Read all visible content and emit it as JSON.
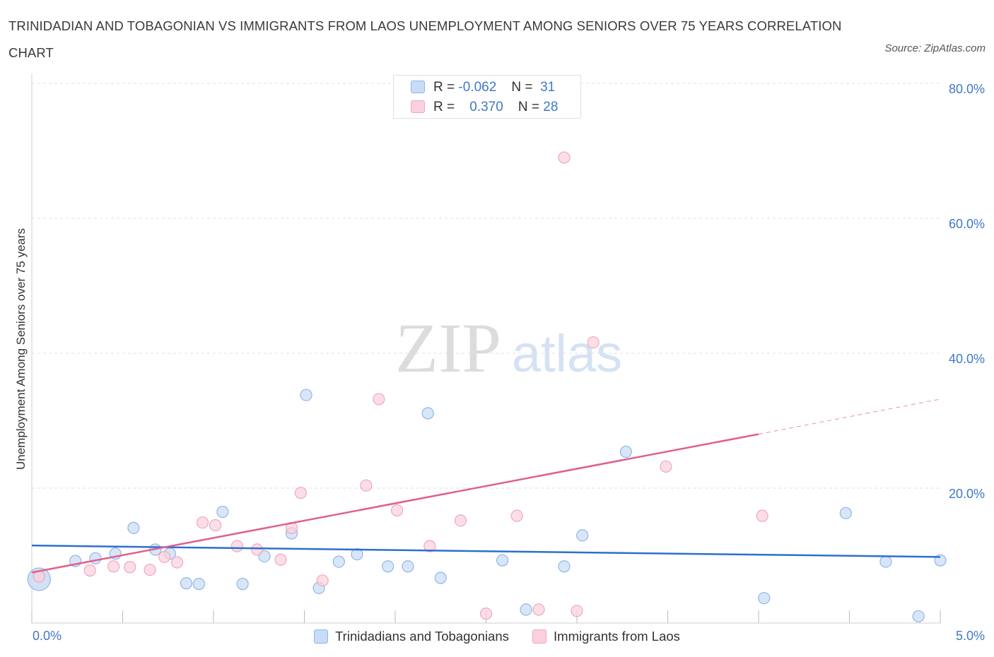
{
  "chart_data": {
    "type": "scatter",
    "title": "TRINIDADIAN AND TOBAGONIAN VS IMMIGRANTS FROM LAOS UNEMPLOYMENT AMONG SENIORS OVER 75 YEARS CORRELATION CHART",
    "source": "Source: ZipAtlas.com",
    "ylabel": "Unemployment Among Seniors over 75 years",
    "xlim": [
      0,
      5
    ],
    "ylim": [
      0,
      80
    ],
    "x_tick_labels": [
      "0.0%",
      "5.0%"
    ],
    "y_ticks": [
      20,
      40,
      60,
      80
    ],
    "y_tick_labels": [
      "20.0%",
      "40.0%",
      "60.0%",
      "80.0%"
    ],
    "grid": "horizontal dashed",
    "watermark": {
      "zip": "ZIP",
      "atlas": "atlas"
    },
    "legend": [
      {
        "r_label": "R =",
        "r_value": "-0.062",
        "n_label": "N =",
        "n_value": "31"
      },
      {
        "r_label": "R =",
        "r_value": "0.370",
        "n_label": "N = ",
        "n_value": "28"
      }
    ],
    "series": [
      {
        "name": "Trinidadians and Tobagonians",
        "color": "#8fb6ea",
        "fill": "#c9dcf5",
        "line_color": "#2f6fcc",
        "trend": {
          "x": [
            0.0,
            5.0
          ],
          "y": [
            11.5,
            9.8
          ]
        },
        "points": [
          {
            "x": 0.04,
            "y": 6.5,
            "big": true
          },
          {
            "x": 0.24,
            "y": 9.2
          },
          {
            "x": 0.35,
            "y": 9.6
          },
          {
            "x": 0.46,
            "y": 10.3
          },
          {
            "x": 0.56,
            "y": 14.1
          },
          {
            "x": 0.68,
            "y": 10.9
          },
          {
            "x": 0.76,
            "y": 10.3
          },
          {
            "x": 0.85,
            "y": 5.9
          },
          {
            "x": 0.92,
            "y": 5.8
          },
          {
            "x": 1.05,
            "y": 16.5
          },
          {
            "x": 1.16,
            "y": 5.8
          },
          {
            "x": 1.28,
            "y": 9.9
          },
          {
            "x": 1.43,
            "y": 13.3
          },
          {
            "x": 1.51,
            "y": 33.8
          },
          {
            "x": 1.58,
            "y": 5.2
          },
          {
            "x": 1.69,
            "y": 9.1
          },
          {
            "x": 1.79,
            "y": 10.2
          },
          {
            "x": 1.96,
            "y": 8.4
          },
          {
            "x": 2.07,
            "y": 8.4
          },
          {
            "x": 2.18,
            "y": 31.1
          },
          {
            "x": 2.25,
            "y": 6.7
          },
          {
            "x": 2.59,
            "y": 9.3
          },
          {
            "x": 2.72,
            "y": 2.0
          },
          {
            "x": 2.93,
            "y": 8.4
          },
          {
            "x": 3.03,
            "y": 13.0
          },
          {
            "x": 3.27,
            "y": 25.4
          },
          {
            "x": 4.03,
            "y": 3.7
          },
          {
            "x": 4.48,
            "y": 16.3
          },
          {
            "x": 4.7,
            "y": 9.1
          },
          {
            "x": 4.88,
            "y": 1.0
          },
          {
            "x": 5.0,
            "y": 9.3
          }
        ]
      },
      {
        "name": "Immigrants from Laos",
        "color": "#f1a7bd",
        "fill": "#f9d0dc",
        "line_color": "#e0608a",
        "trend": {
          "x": [
            0.0,
            4.0
          ],
          "y": [
            7.5,
            28.0
          ]
        },
        "trend_dashed": {
          "x": [
            4.0,
            5.0
          ],
          "y": [
            28.0,
            33.2
          ]
        },
        "points": [
          {
            "x": 0.04,
            "y": 6.9
          },
          {
            "x": 0.32,
            "y": 7.8
          },
          {
            "x": 0.45,
            "y": 8.4
          },
          {
            "x": 0.54,
            "y": 8.3
          },
          {
            "x": 0.65,
            "y": 7.9
          },
          {
            "x": 0.73,
            "y": 9.8
          },
          {
            "x": 0.8,
            "y": 9.0
          },
          {
            "x": 0.94,
            "y": 14.9
          },
          {
            "x": 1.01,
            "y": 14.5
          },
          {
            "x": 1.13,
            "y": 11.4
          },
          {
            "x": 1.24,
            "y": 10.9
          },
          {
            "x": 1.37,
            "y": 9.4
          },
          {
            "x": 1.43,
            "y": 14.1
          },
          {
            "x": 1.48,
            "y": 19.3
          },
          {
            "x": 1.6,
            "y": 6.3
          },
          {
            "x": 1.84,
            "y": 20.4
          },
          {
            "x": 1.91,
            "y": 33.2
          },
          {
            "x": 2.01,
            "y": 16.7
          },
          {
            "x": 2.19,
            "y": 11.4
          },
          {
            "x": 2.36,
            "y": 15.2
          },
          {
            "x": 2.5,
            "y": 1.4
          },
          {
            "x": 2.67,
            "y": 15.9
          },
          {
            "x": 2.79,
            "y": 2.0
          },
          {
            "x": 2.93,
            "y": 69.0
          },
          {
            "x": 3.0,
            "y": 1.8
          },
          {
            "x": 3.09,
            "y": 41.6
          },
          {
            "x": 3.49,
            "y": 23.2
          },
          {
            "x": 4.02,
            "y": 15.9
          }
        ]
      }
    ]
  }
}
